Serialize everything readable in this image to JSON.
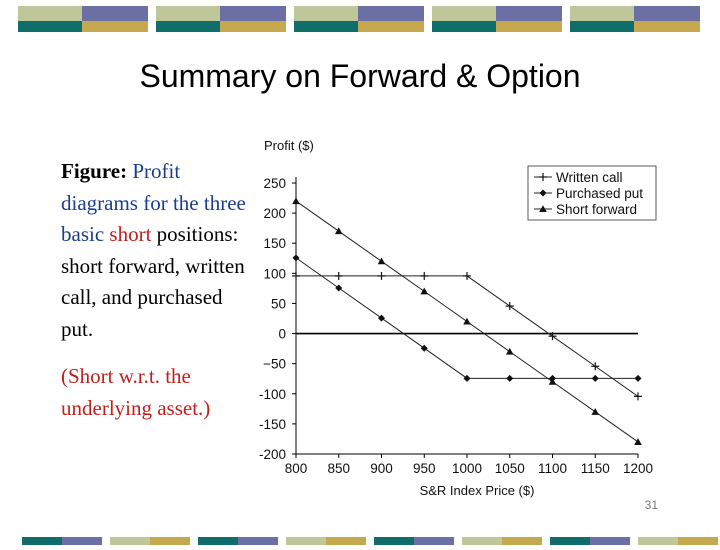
{
  "slide": {
    "title": "Summary on Forward & Option",
    "page_number": "31",
    "band_colors": [
      "#bfc69a",
      "#6b6fa3",
      "#0f6e6a",
      "#c6a84e"
    ],
    "caption": {
      "lead": "Figure:",
      "part1": "Profit diagrams for the three basic ",
      "part1_highlight": "short",
      "part2": " positions: short forward, written call, and purchased put.",
      "note": "(Short w.r.t. the underlying asset.)"
    }
  },
  "chart_data": {
    "type": "line",
    "ylabel": "Profit ($)",
    "xlabel": "S&R Index Price ($)",
    "xlim": [
      800,
      1200
    ],
    "ylim": [
      -200,
      250
    ],
    "x_ticks": [
      800,
      850,
      900,
      950,
      1000,
      1050,
      1100,
      1150,
      1200
    ],
    "x_tick_labels": [
      "800",
      "850",
      "900",
      "950",
      "1000",
      "1050",
      "1100",
      "1150",
      "1200"
    ],
    "y_ticks": [
      250,
      200,
      150,
      100,
      50,
      0,
      -50,
      -100,
      -150,
      -200
    ],
    "y_tick_labels": [
      "250",
      "200",
      "150",
      "100",
      "50",
      "0",
      "−50",
      "-100",
      "-150",
      "-200"
    ],
    "zero_line": true,
    "legend_position": "top-right",
    "series": [
      {
        "name": "Written call",
        "marker": "plus",
        "x": [
          800,
          850,
          900,
          950,
          1000,
          1050,
          1100,
          1150,
          1200
        ],
        "values": [
          95.68,
          95.68,
          95.68,
          95.68,
          95.68,
          45.68,
          -4.32,
          -54.32,
          -104.32
        ]
      },
      {
        "name": "Purchased put",
        "marker": "diamond",
        "x": [
          800,
          850,
          900,
          950,
          1000,
          1050,
          1100,
          1150,
          1200
        ],
        "values": [
          125.68,
          75.68,
          25.68,
          -24.32,
          -74.32,
          -74.32,
          -74.32,
          -74.32,
          -74.32
        ]
      },
      {
        "name": "Short forward",
        "marker": "triangle",
        "x": [
          800,
          850,
          900,
          950,
          1000,
          1050,
          1100,
          1150,
          1200
        ],
        "values": [
          220,
          170,
          120,
          70,
          20,
          -30,
          -80,
          -130,
          -180
        ]
      }
    ]
  }
}
